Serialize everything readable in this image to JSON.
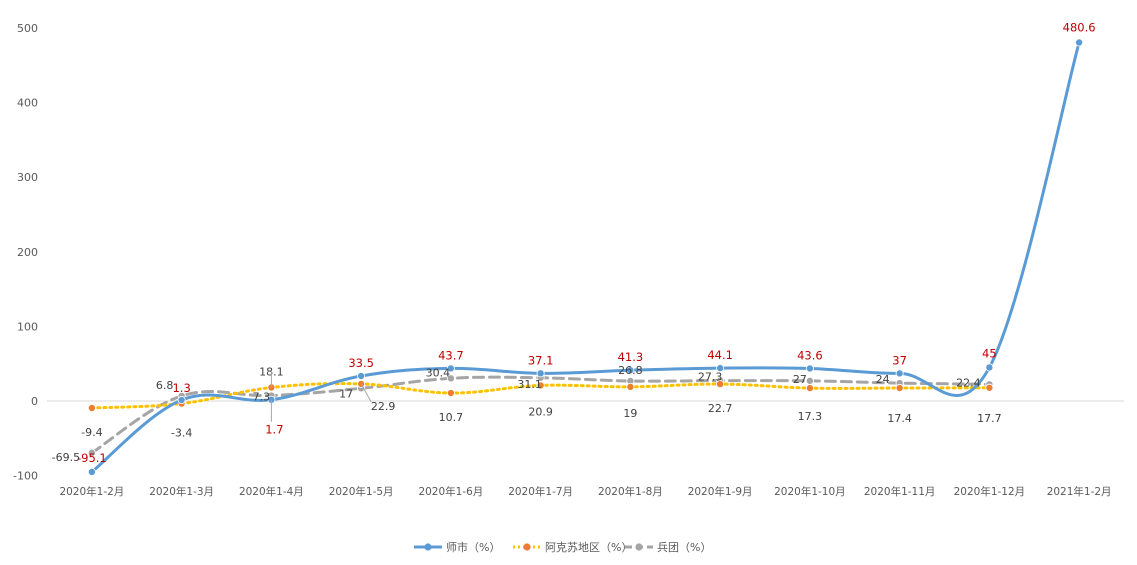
{
  "chart_data": {
    "type": "line",
    "title": "",
    "xlabel": "",
    "ylabel": "",
    "ylim": [
      -100,
      500
    ],
    "yticks": [
      -100,
      0,
      100,
      200,
      300,
      400,
      500
    ],
    "grid": false,
    "legend_position": "bottom",
    "categories": [
      "2020年1-2月",
      "2020年1-3月",
      "2020年1-4月",
      "2020年1-5月",
      "2020年1-6月",
      "2020年1-7月",
      "2020年1-8月",
      "2020年1-9月",
      "2020年1-10月",
      "2020年1-11月",
      "2020年1-12月",
      "2021年1-2月"
    ],
    "series": [
      {
        "name": "师市（%）",
        "color": "#5B9BD5",
        "style": "solid",
        "values": [
          -95.1,
          1.3,
          1.7,
          33.5,
          43.7,
          37.1,
          41.3,
          44.1,
          43.6,
          37,
          45,
          480.6
        ]
      },
      {
        "name": "阿克苏地区（%）",
        "color": "#ED7D31",
        "line_color": "#FFC000",
        "style": "dotted",
        "values": [
          -9.4,
          -3.4,
          18.1,
          22.9,
          10.7,
          20.9,
          19,
          22.7,
          17.3,
          17.4,
          17.7,
          null
        ]
      },
      {
        "name": "兵团（%）",
        "color": "#A5A5A5",
        "style": "dashed",
        "values": [
          -69.5,
          6.8,
          7.3,
          17,
          30.4,
          31.1,
          26.8,
          27.3,
          27,
          24,
          22.4,
          null
        ]
      }
    ]
  }
}
